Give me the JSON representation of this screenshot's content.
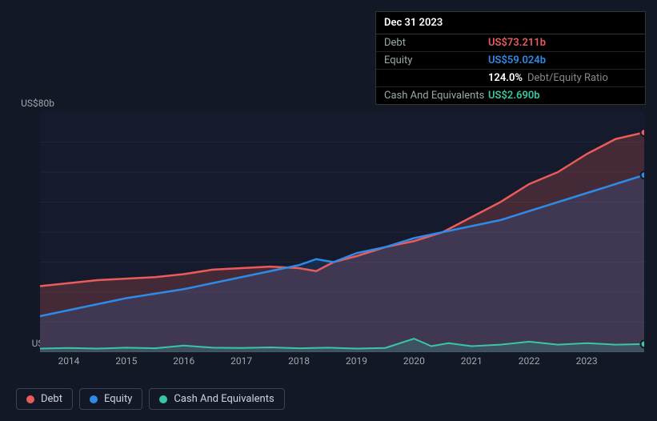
{
  "tooltip": {
    "date": "Dec 31 2023",
    "rows": [
      {
        "label": "Debt",
        "value": "US$73.211b",
        "color": "#eb5b5b"
      },
      {
        "label": "Equity",
        "value": "US$59.024b",
        "color": "#2e8ae6"
      },
      {
        "label": "",
        "value": "124.0%",
        "suffix": "Debt/Equity Ratio",
        "color": "#ffffff"
      },
      {
        "label": "Cash And Equivalents",
        "value": "US$2.690b",
        "color": "#39c6a4"
      }
    ]
  },
  "chart": {
    "type": "area",
    "background_color": "#131826",
    "plot_background": "#151b2c",
    "grid_color": "#1e2536",
    "axis_color": "#2a3246",
    "label_color": "#99a2b4",
    "label_fontsize": 12,
    "ylim": [
      0,
      80
    ],
    "y_ticks": [
      {
        "v": 80,
        "label": "US$80b"
      },
      {
        "v": 0,
        "label": "US$0"
      }
    ],
    "x_years": [
      2014,
      2015,
      2016,
      2017,
      2018,
      2019,
      2020,
      2021,
      2022,
      2023
    ],
    "x_range": [
      2013.5,
      2024.0
    ],
    "series": [
      {
        "name": "Debt",
        "color": "#eb5b5b",
        "fill": "rgba(235,91,91,0.22)",
        "stroke_width": 2.5,
        "points": [
          [
            2013.5,
            22
          ],
          [
            2014,
            23
          ],
          [
            2014.5,
            24
          ],
          [
            2015,
            24.5
          ],
          [
            2015.5,
            25
          ],
          [
            2016,
            26
          ],
          [
            2016.5,
            27.5
          ],
          [
            2017,
            28
          ],
          [
            2017.5,
            28.5
          ],
          [
            2018,
            28
          ],
          [
            2018.3,
            27
          ],
          [
            2018.6,
            30
          ],
          [
            2019,
            32
          ],
          [
            2019.5,
            35
          ],
          [
            2020,
            37
          ],
          [
            2020.5,
            40
          ],
          [
            2021,
            45
          ],
          [
            2021.5,
            50
          ],
          [
            2022,
            56
          ],
          [
            2022.5,
            60
          ],
          [
            2023,
            66
          ],
          [
            2023.5,
            71
          ],
          [
            2024,
            73.2
          ]
        ]
      },
      {
        "name": "Equity",
        "color": "#2e8ae6",
        "fill": "rgba(46,138,230,0.16)",
        "stroke_width": 2.5,
        "points": [
          [
            2013.5,
            12
          ],
          [
            2014,
            14
          ],
          [
            2014.5,
            16
          ],
          [
            2015,
            18
          ],
          [
            2015.5,
            19.5
          ],
          [
            2016,
            21
          ],
          [
            2016.5,
            23
          ],
          [
            2017,
            25
          ],
          [
            2017.5,
            27
          ],
          [
            2018,
            29
          ],
          [
            2018.3,
            31
          ],
          [
            2018.6,
            30
          ],
          [
            2019,
            33
          ],
          [
            2019.5,
            35
          ],
          [
            2020,
            38
          ],
          [
            2020.5,
            40
          ],
          [
            2021,
            42
          ],
          [
            2021.5,
            44
          ],
          [
            2022,
            47
          ],
          [
            2022.5,
            50
          ],
          [
            2023,
            53
          ],
          [
            2023.5,
            56
          ],
          [
            2024,
            59
          ]
        ]
      },
      {
        "name": "Cash And Equivalents",
        "color": "#39c6a4",
        "fill": "rgba(57,198,164,0.18)",
        "stroke_width": 2,
        "points": [
          [
            2013.5,
            1.2
          ],
          [
            2014,
            1.4
          ],
          [
            2014.5,
            1.2
          ],
          [
            2015,
            1.5
          ],
          [
            2015.5,
            1.3
          ],
          [
            2016,
            2.2
          ],
          [
            2016.5,
            1.5
          ],
          [
            2017,
            1.4
          ],
          [
            2017.5,
            1.6
          ],
          [
            2018,
            1.3
          ],
          [
            2018.5,
            1.5
          ],
          [
            2019,
            1.2
          ],
          [
            2019.5,
            1.4
          ],
          [
            2020,
            4.5
          ],
          [
            2020.3,
            2
          ],
          [
            2020.6,
            3
          ],
          [
            2021,
            2
          ],
          [
            2021.5,
            2.5
          ],
          [
            2022,
            3.5
          ],
          [
            2022.5,
            2.5
          ],
          [
            2023,
            3
          ],
          [
            2023.5,
            2.5
          ],
          [
            2024,
            2.7
          ]
        ]
      }
    ],
    "legend": [
      {
        "label": "Debt",
        "color": "#eb5b5b"
      },
      {
        "label": "Equity",
        "color": "#2e8ae6"
      },
      {
        "label": "Cash And Equivalents",
        "color": "#39c6a4"
      }
    ]
  }
}
